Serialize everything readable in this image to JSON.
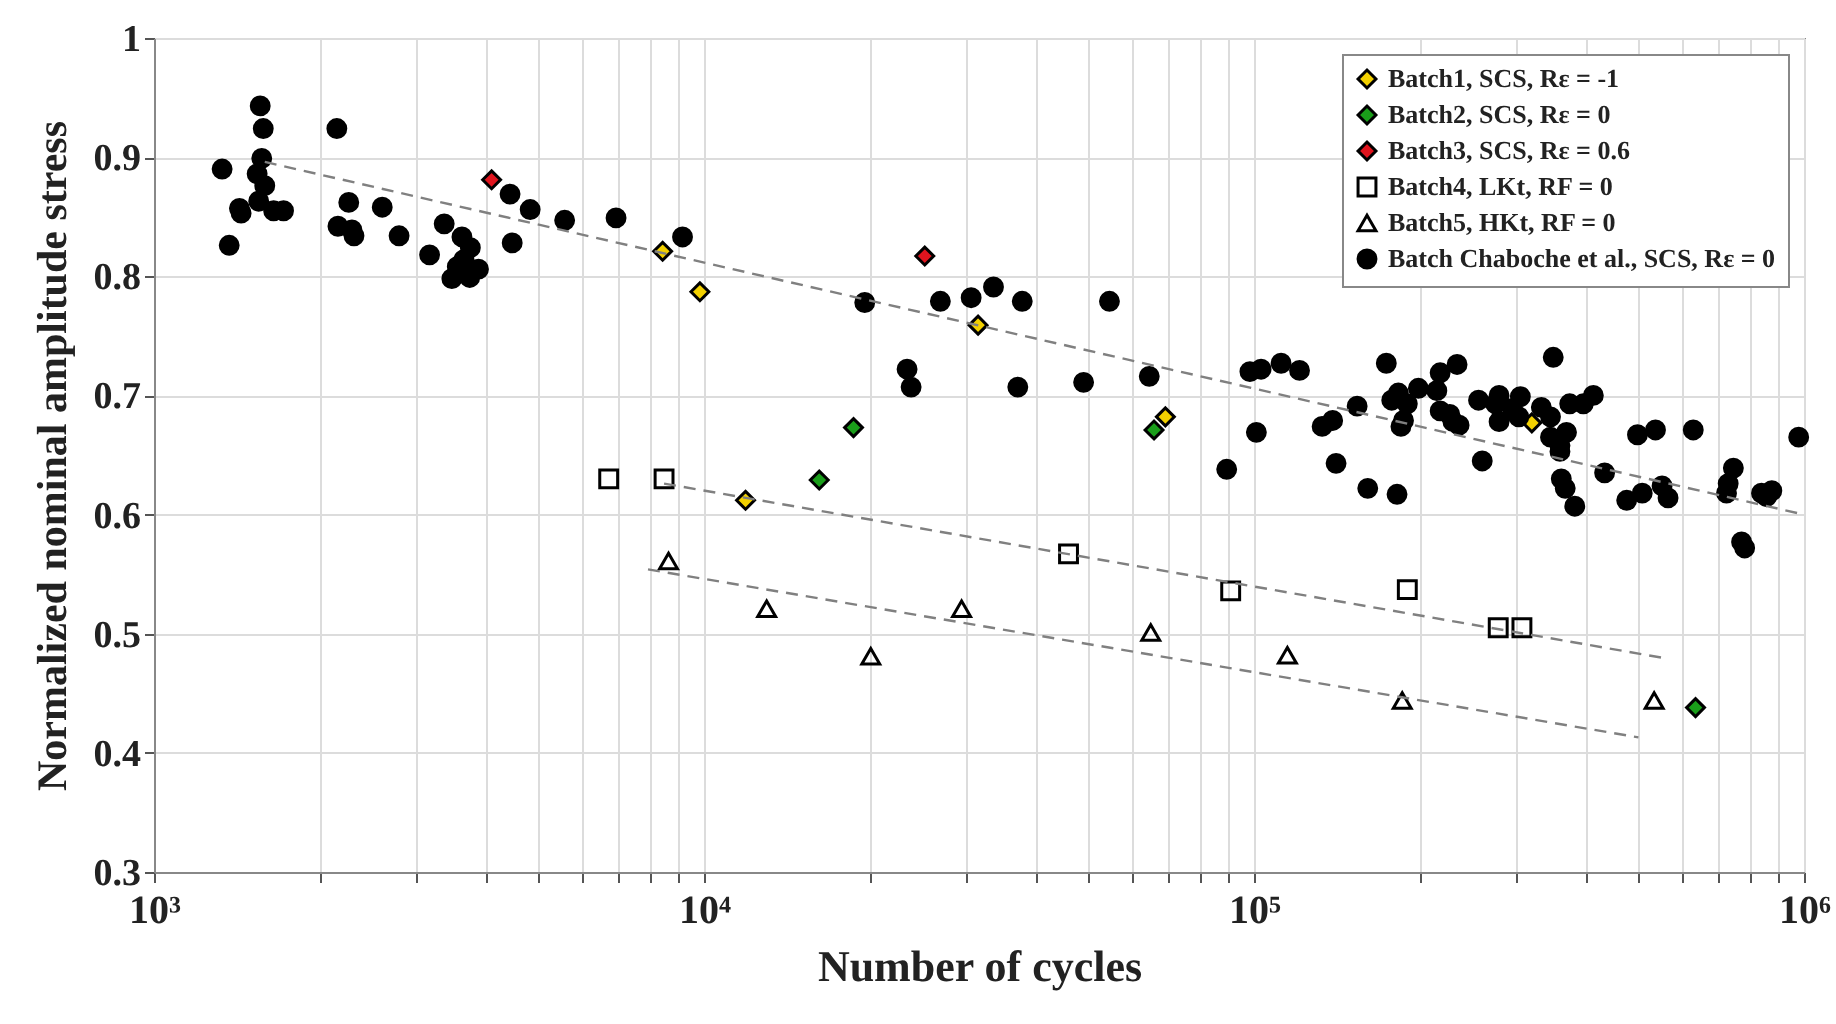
{
  "chart_data": {
    "type": "scatter",
    "xlabel": "Number of cycles",
    "ylabel": "Normalized nominal amplitude stress",
    "log": "x",
    "grid": true,
    "legend": "top right",
    "xlim": [
      1000,
      1000000
    ],
    "ylim": [
      0.3,
      1
    ],
    "xticks": [
      {
        "value": 1000,
        "label": "10³"
      },
      {
        "value": 10000,
        "label": "10⁴"
      },
      {
        "value": 100000,
        "label": "10⁵"
      },
      {
        "value": 1000000,
        "label": "10⁶"
      }
    ],
    "yticks": [
      0.3,
      0.4,
      0.5,
      0.6,
      0.7,
      0.8,
      0.9,
      1
    ],
    "series": [
      {
        "name": "Batch1, SCS, Rε = -1",
        "marker": "diamond",
        "color": "#f2d000",
        "x": [
          8410,
          9830,
          31500,
          11900,
          69000,
          320000
        ],
        "values": [
          0.821,
          0.787,
          0.759,
          0.612,
          0.682,
          0.677
        ]
      },
      {
        "name": "Batch2, SCS, Rε = 0",
        "marker": "diamond",
        "color": "#1a9e1a",
        "x": [
          16200,
          18700,
          65800,
          635000
        ],
        "values": [
          0.629,
          0.673,
          0.671,
          0.438
        ]
      },
      {
        "name": "Batch3, SCS, Rε = 0.6",
        "marker": "diamond",
        "color": "#e0141e",
        "x": [
          4110,
          25200
        ],
        "values": [
          0.881,
          0.817
        ]
      },
      {
        "name": "Batch4, LKt, RF = 0",
        "marker": "square",
        "color": "#000000",
        "x": [
          6710,
          8460,
          46000,
          90700,
          190000,
          278000,
          307000
        ],
        "values": [
          0.63,
          0.63,
          0.567,
          0.536,
          0.537,
          0.505,
          0.505
        ]
      },
      {
        "name": "Batch5, HKt, RF = 0",
        "marker": "triangle",
        "color": "#000000",
        "x": [
          8620,
          13000,
          20100,
          29400,
          64900,
          115000,
          186000,
          534000
        ],
        "values": [
          0.561,
          0.521,
          0.481,
          0.521,
          0.501,
          0.482,
          0.444,
          0.444
        ]
      },
      {
        "name": "Batch Chaboche et al., SCS, Rε = 0",
        "marker": "circle",
        "color": "#000000",
        "x": [
          1330,
          1370,
          1560,
          1580,
          1570,
          1540,
          1590,
          1550,
          1430,
          1440,
          1650,
          1720,
          2150,
          2260,
          2160,
          2290,
          2310,
          2600,
          2790,
          3170,
          3370,
          3630,
          3760,
          3660,
          3560,
          3480,
          3750,
          3890,
          4440,
          4830,
          4480,
          5580,
          6920,
          9140,
          19600,
          26900,
          30600,
          33600,
          37900,
          54600,
          23400,
          23800,
          37200,
          49000,
          64500,
          98300,
          103000,
          112000,
          89200,
          101000,
          121000,
          174000,
          218000,
          234000,
          350000,
          133000,
          139000,
          141000,
          154000,
          161000,
          182000,
          178000,
          183000,
          190000,
          187000,
          185000,
          199000,
          215000,
          218000,
          227000,
          230000,
          236000,
          256000,
          260000,
          275000,
          279000,
          279000,
          295000,
          305000,
          303000,
          333000,
          346000,
          346000,
          360000,
          360000,
          370000,
          375000,
          397000,
          414000,
          362000,
          368000,
          383000,
          434000,
          476000,
          508000,
          498000,
          537000,
          552000,
          566000,
          629000,
          744000,
          728000,
          723000,
          770000,
          780000,
          837000,
          855000,
          874000,
          978000
        ],
        "values": [
          0.89,
          0.826,
          0.943,
          0.924,
          0.899,
          0.886,
          0.876,
          0.863,
          0.857,
          0.853,
          0.855,
          0.855,
          0.924,
          0.862,
          0.842,
          0.839,
          0.834,
          0.858,
          0.834,
          0.818,
          0.844,
          0.833,
          0.824,
          0.814,
          0.808,
          0.798,
          0.799,
          0.806,
          0.869,
          0.856,
          0.828,
          0.847,
          0.849,
          0.833,
          0.778,
          0.779,
          0.782,
          0.791,
          0.779,
          0.779,
          0.722,
          0.707,
          0.707,
          0.711,
          0.716,
          0.72,
          0.722,
          0.727,
          0.638,
          0.669,
          0.721,
          0.727,
          0.719,
          0.726,
          0.732,
          0.674,
          0.679,
          0.643,
          0.691,
          0.622,
          0.617,
          0.696,
          0.702,
          0.693,
          0.679,
          0.674,
          0.706,
          0.704,
          0.687,
          0.684,
          0.678,
          0.675,
          0.696,
          0.645,
          0.693,
          0.7,
          0.678,
          0.689,
          0.699,
          0.682,
          0.69,
          0.682,
          0.665,
          0.658,
          0.653,
          0.669,
          0.693,
          0.693,
          0.7,
          0.63,
          0.622,
          0.607,
          0.635,
          0.612,
          0.618,
          0.667,
          0.671,
          0.624,
          0.614,
          0.671,
          0.639,
          0.626,
          0.618,
          0.577,
          0.572,
          0.618,
          0.615,
          0.62,
          0.665
        ]
      },
      {
        "type": "line",
        "color": "#808080",
        "line_style": "dashed",
        "x": [
          1590,
          1000000
        ],
        "values": [
          0.896,
          0.6
        ]
      },
      {
        "type": "line",
        "color": "#808080",
        "line_style": "dashed",
        "x": [
          8460,
          550000
        ],
        "values": [
          0.626,
          0.48
        ]
      },
      {
        "type": "line",
        "color": "#808080",
        "line_style": "dashed",
        "x": [
          7910,
          500000
        ],
        "values": [
          0.554,
          0.413
        ]
      }
    ]
  }
}
